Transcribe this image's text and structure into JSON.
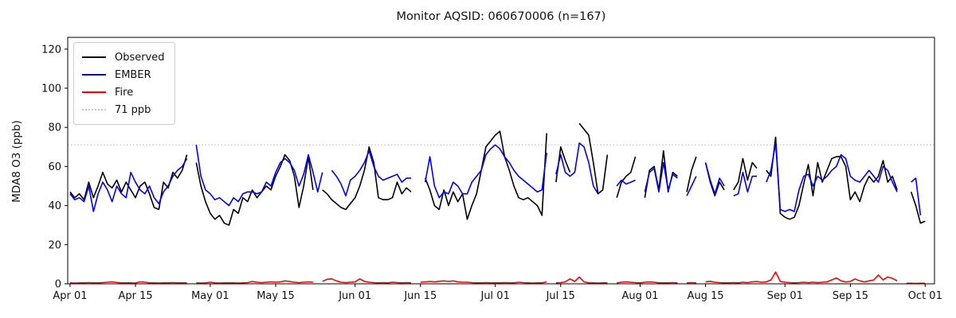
{
  "legend": {
    "items": [
      {
        "label": "Observed",
        "color": "#000000",
        "style": "solid"
      },
      {
        "label": "EMBER",
        "color": "#0000ff",
        "style": "solid"
      },
      {
        "label": "Fire",
        "color": "#ff0000",
        "style": "solid"
      },
      {
        "label": "71 ppb",
        "color": "#c9c9c9",
        "style": "dotted"
      }
    ]
  },
  "chart_data": {
    "type": "line",
    "title": "Monitor AQSID: 060670006 (n=167)",
    "xlabel": "",
    "ylabel": "MDA8 O3 (ppb)",
    "ylim": [
      0,
      126
    ],
    "grid": false,
    "legend_position": "upper left",
    "x_unit": "days from Apr 01",
    "xticks": [
      {
        "day": 0,
        "label": "Apr 01"
      },
      {
        "day": 14,
        "label": "Apr 15"
      },
      {
        "day": 30,
        "label": "May 01"
      },
      {
        "day": 44,
        "label": "May 15"
      },
      {
        "day": 61,
        "label": "Jun 01"
      },
      {
        "day": 75,
        "label": "Jun 15"
      },
      {
        "day": 91,
        "label": "Jul 01"
      },
      {
        "day": 105,
        "label": "Jul 15"
      },
      {
        "day": 122,
        "label": "Aug 01"
      },
      {
        "day": 136,
        "label": "Aug 15"
      },
      {
        "day": 153,
        "label": "Sep 01"
      },
      {
        "day": 167,
        "label": "Sep 15"
      },
      {
        "day": 183,
        "label": "Oct 01"
      }
    ],
    "yticks": [
      0,
      20,
      40,
      60,
      80,
      100,
      120
    ],
    "threshold": {
      "value": 71,
      "label": "71 ppb",
      "color": "#c9c9c9",
      "style": "dotted"
    },
    "series": [
      {
        "name": "Observed",
        "color": "#000000",
        "values": [
          47,
          44,
          46,
          43,
          52,
          44,
          50,
          57,
          51,
          49,
          53,
          47,
          52,
          48,
          44,
          50,
          52,
          46,
          39,
          38,
          52,
          49,
          57,
          54,
          58,
          66,
          null,
          62,
          50,
          42,
          36,
          33,
          35,
          31,
          30,
          38,
          36,
          44,
          42,
          48,
          44,
          47,
          50,
          48,
          55,
          60,
          66,
          63,
          55,
          39,
          50,
          65,
          48,
          null,
          48,
          46,
          43,
          41,
          39,
          38,
          41,
          44,
          50,
          58,
          70,
          62,
          44,
          43,
          43,
          44,
          52,
          46,
          49,
          47,
          null,
          null,
          54,
          48,
          40,
          38,
          48,
          40,
          47,
          42,
          46,
          33,
          40,
          46,
          58,
          70,
          73,
          76,
          78,
          65,
          58,
          50,
          44,
          43,
          44,
          42,
          40,
          35,
          77,
          null,
          52,
          70,
          63,
          57,
          null,
          82,
          79,
          76,
          62,
          46,
          48,
          66,
          null,
          44,
          52,
          55,
          57,
          65,
          null,
          44,
          58,
          60,
          48,
          68,
          47,
          57,
          55,
          null,
          47,
          58,
          65,
          null,
          62,
          52,
          45,
          52,
          48,
          null,
          48,
          52,
          64,
          53,
          62,
          59,
          null,
          58,
          55,
          75,
          36,
          34,
          33,
          34,
          40,
          51,
          61,
          45,
          62,
          52,
          58,
          64,
          65,
          65,
          60,
          43,
          47,
          42,
          50,
          55,
          52,
          55,
          63,
          52,
          55,
          48,
          null,
          null,
          47,
          40,
          31,
          32
        ]
      },
      {
        "name": "EMBER",
        "color": "#0000ff",
        "values": [
          46,
          43,
          44,
          42,
          50,
          37,
          46,
          52,
          48,
          42,
          50,
          46,
          44,
          57,
          52,
          48,
          46,
          50,
          44,
          41,
          47,
          50,
          55,
          58,
          60,
          64,
          null,
          71,
          55,
          48,
          46,
          43,
          44,
          42,
          40,
          44,
          42,
          46,
          47,
          47,
          46,
          47,
          52,
          50,
          57,
          62,
          64,
          62,
          58,
          50,
          56,
          66,
          57,
          47,
          57,
          null,
          58,
          55,
          51,
          45,
          53,
          55,
          58,
          62,
          68,
          60,
          55,
          53,
          54,
          55,
          56,
          52,
          54,
          54,
          null,
          null,
          52,
          65,
          50,
          44,
          47,
          46,
          52,
          50,
          46,
          46,
          52,
          55,
          58,
          66,
          69,
          71,
          69,
          65,
          62,
          58,
          55,
          53,
          51,
          49,
          47,
          48,
          67,
          null,
          56,
          66,
          57,
          55,
          57,
          72,
          70,
          62,
          50,
          46,
          null,
          46,
          null,
          50,
          53,
          51,
          52,
          53,
          null,
          47,
          57,
          59,
          47,
          62,
          48,
          56,
          54,
          null,
          45,
          50,
          55,
          null,
          62,
          53,
          46,
          54,
          50,
          null,
          45,
          46,
          57,
          47,
          55,
          55,
          null,
          52,
          58,
          72,
          38,
          37,
          38,
          37,
          48,
          55,
          56,
          50,
          55,
          53,
          55,
          58,
          60,
          66,
          64,
          55,
          53,
          52,
          55,
          58,
          55,
          52,
          60,
          58,
          52,
          47,
          null,
          null,
          52,
          54,
          35,
          null
        ]
      },
      {
        "name": "Fire",
        "color": "#ff0000",
        "values": [
          0.5,
          0.4,
          0.5,
          0.5,
          0.6,
          0.5,
          0.5,
          0.6,
          0.8,
          1.0,
          0.7,
          0.5,
          0.5,
          0.5,
          0.4,
          1.0,
          0.8,
          0.5,
          0.5,
          0.4,
          0.5,
          0.5,
          0.6,
          0.5,
          0.5,
          0.5,
          null,
          0.5,
          0.4,
          0.5,
          0.8,
          0.5,
          0.4,
          0.5,
          0.5,
          0.5,
          0.4,
          0.5,
          0.6,
          1.2,
          0.8,
          0.6,
          0.8,
          1.0,
          0.8,
          1.0,
          1.5,
          1.2,
          0.8,
          0.6,
          0.8,
          1.0,
          0.8,
          null,
          1.2,
          2.3,
          2.5,
          1.5,
          0.8,
          0.6,
          0.8,
          1.0,
          2.5,
          1.2,
          0.8,
          0.6,
          0.5,
          0.6,
          0.5,
          0.8,
          0.6,
          0.5,
          0.6,
          0.5,
          null,
          0.8,
          1.0,
          1.2,
          1.0,
          1.3,
          1.5,
          1.2,
          1.5,
          1.0,
          0.8,
          0.8,
          0.6,
          0.5,
          0.5,
          0.6,
          0.5,
          0.5,
          0.5,
          0.6,
          0.5,
          0.5,
          0.8,
          0.6,
          0.5,
          0.4,
          0.5,
          0.5,
          1.0,
          null,
          0.5,
          0.6,
          1.0,
          2.5,
          1.2,
          3.5,
          1.0,
          0.5,
          0.5,
          0.4,
          0.5,
          0.5,
          null,
          0.5,
          0.8,
          1.0,
          0.8,
          0.6,
          0.5,
          0.8,
          1.0,
          0.8,
          0.5,
          0.5,
          0.5,
          0.6,
          0.5,
          null,
          0.5,
          0.6,
          0.5,
          null,
          1.0,
          1.3,
          0.8,
          0.6,
          0.5,
          0.5,
          0.6,
          0.5,
          0.8,
          0.6,
          1.0,
          1.2,
          0.8,
          1.0,
          2.0,
          6.0,
          1.2,
          0.8,
          0.6,
          0.5,
          0.6,
          0.8,
          0.6,
          0.8,
          0.6,
          0.8,
          1.0,
          2.0,
          3.0,
          1.5,
          1.0,
          1.2,
          2.5,
          1.5,
          1.0,
          1.5,
          2.0,
          4.5,
          2.0,
          3.5,
          2.8,
          1.5,
          null,
          0.3,
          0.3,
          0.2,
          0.3,
          0.3
        ]
      }
    ]
  }
}
